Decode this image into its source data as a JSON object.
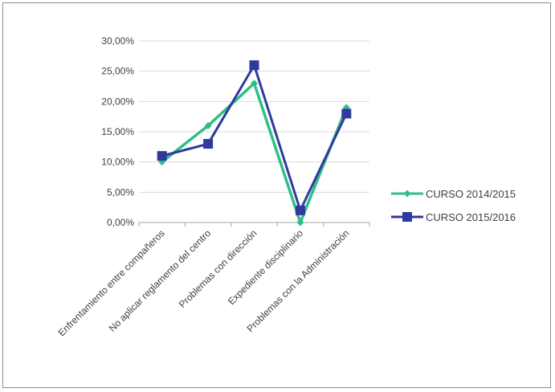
{
  "chart_data": {
    "type": "line",
    "categories": [
      "Enfrentamiento entre compañeros",
      "No aplicar reglamento del centro",
      "Problemas con dirección",
      "Expediente disciplinario",
      "Problemas con la Administración"
    ],
    "series": [
      {
        "name": "CURSO 2014/2015",
        "values": [
          10,
          16,
          23,
          0,
          19
        ],
        "color": "#2fbf86",
        "marker": "diamond"
      },
      {
        "name": "CURSO 2015/2016",
        "values": [
          11,
          13,
          26,
          2,
          18
        ],
        "color": "#2e3a9e",
        "marker": "square"
      }
    ],
    "y_ticks": [
      "0,00%",
      "5,00%",
      "10,00%",
      "15,00%",
      "20,00%",
      "25,00%",
      "30,00%"
    ],
    "ylim": [
      0,
      30
    ],
    "grid": true,
    "legend_position": "right"
  }
}
